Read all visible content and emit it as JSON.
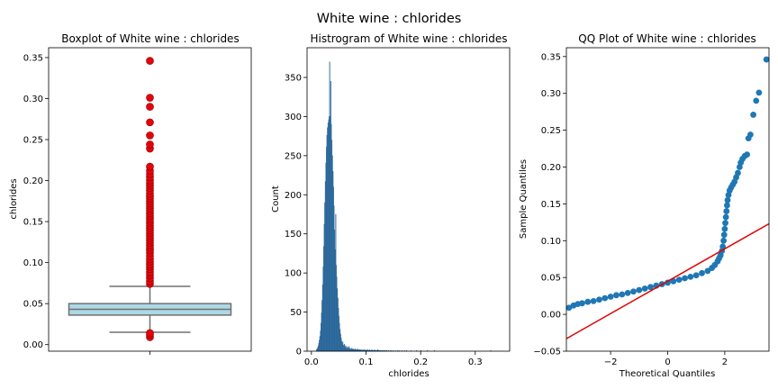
{
  "figure": {
    "title": "White wine : chlorides"
  },
  "chart_data": [
    {
      "type": "box",
      "title": "Boxplot of White wine : chlorides",
      "xlabel": "",
      "ylabel": "chlorides",
      "ylim": [
        -0.008,
        0.362
      ],
      "yticks": [
        0.0,
        0.05,
        0.1,
        0.15,
        0.2,
        0.25,
        0.3,
        0.35
      ],
      "ytick_labels": [
        "0.00",
        "0.05",
        "0.10",
        "0.15",
        "0.20",
        "0.25",
        "0.30",
        "0.35"
      ],
      "q1": 0.036,
      "median": 0.043,
      "q3": 0.05,
      "whisker_low": 0.015,
      "whisker_high": 0.071,
      "outliers": [
        0.009,
        0.012,
        0.014,
        0.074,
        0.077,
        0.081,
        0.085,
        0.088,
        0.092,
        0.095,
        0.098,
        0.101,
        0.104,
        0.108,
        0.112,
        0.115,
        0.118,
        0.121,
        0.124,
        0.127,
        0.13,
        0.133,
        0.136,
        0.139,
        0.142,
        0.145,
        0.148,
        0.151,
        0.154,
        0.157,
        0.16,
        0.163,
        0.166,
        0.169,
        0.172,
        0.175,
        0.178,
        0.181,
        0.184,
        0.188,
        0.191,
        0.194,
        0.197,
        0.2,
        0.204,
        0.208,
        0.212,
        0.217,
        0.239,
        0.244,
        0.255,
        0.271,
        0.29,
        0.301,
        0.346
      ],
      "colors": {
        "box": "#add8e6",
        "outlier": "#e8000b",
        "lines": "#707070"
      }
    },
    {
      "type": "histogram",
      "title": "Histrogram of White wine : chlorides",
      "xlabel": "chlorides",
      "ylabel": "Count",
      "xlim": [
        -0.008,
        0.363
      ],
      "ylim": [
        0,
        388
      ],
      "xticks": [
        0.0,
        0.1,
        0.2,
        0.3
      ],
      "xtick_labels": [
        "0.0",
        "0.1",
        "0.2",
        "0.3"
      ],
      "yticks": [
        0,
        50,
        100,
        150,
        200,
        250,
        300,
        350
      ],
      "ytick_labels": [
        "0",
        "50",
        "100",
        "150",
        "200",
        "250",
        "300",
        "350"
      ],
      "bin_start": 0.009,
      "bin_width": 0.001,
      "counts": [
        2,
        3,
        5,
        7,
        10,
        14,
        19,
        26,
        36,
        49,
        65,
        85,
        108,
        134,
        162,
        190,
        217,
        241,
        261,
        276,
        286,
        292,
        296,
        300,
        370,
        300,
        345,
        290,
        270,
        250,
        230,
        210,
        186,
        155,
        130,
        175,
        110,
        95,
        80,
        68,
        55,
        45,
        36,
        28,
        22,
        17,
        13,
        10,
        12,
        8,
        6,
        9,
        5,
        7,
        4,
        6,
        3,
        5,
        4,
        6,
        3,
        4,
        2,
        3,
        4,
        2,
        3,
        2,
        3,
        2,
        2,
        3,
        2,
        1,
        2,
        3,
        2,
        1,
        2,
        2,
        1,
        2,
        1,
        2,
        1,
        1,
        2,
        1,
        2,
        1,
        1,
        2,
        1,
        1,
        2,
        1,
        1,
        2,
        1,
        1,
        1,
        2,
        1,
        1,
        1,
        1,
        2,
        1,
        1,
        1,
        1,
        1,
        2,
        1,
        1,
        1,
        1,
        1,
        0,
        1,
        1,
        1,
        0,
        1,
        1,
        0,
        1,
        0,
        1,
        1,
        0,
        0,
        1,
        0,
        0,
        1,
        0,
        1,
        0,
        0,
        1,
        0,
        0,
        0,
        1,
        0,
        0,
        0,
        1,
        0,
        0,
        1,
        0,
        0,
        0,
        0,
        1,
        0,
        0,
        0,
        0,
        1,
        0,
        0,
        0,
        1,
        0,
        0,
        0,
        0,
        0,
        0,
        0,
        1,
        0,
        0,
        0,
        0,
        0,
        0,
        0,
        0,
        0,
        1,
        0,
        0,
        0,
        0,
        0,
        0,
        0,
        1,
        0,
        0,
        0,
        0,
        0,
        0,
        0,
        0,
        0,
        0,
        0,
        1,
        0,
        0,
        0,
        0,
        0,
        0,
        0,
        0,
        0,
        0,
        0,
        0,
        1,
        0,
        0,
        0,
        0,
        0,
        0,
        0,
        0,
        0,
        0,
        0,
        0,
        0,
        0,
        0,
        0,
        0,
        0,
        0,
        0,
        0,
        0,
        0,
        0,
        0,
        0,
        0,
        0,
        0,
        0,
        0,
        0,
        0,
        0,
        0,
        0,
        0,
        0,
        0,
        0,
        0,
        0,
        0,
        0,
        0,
        0,
        0,
        0,
        0,
        0,
        0,
        0,
        0,
        0,
        0,
        0,
        0,
        0,
        0,
        0,
        0,
        0,
        0,
        0,
        0,
        0,
        0,
        0,
        0,
        0,
        0,
        0,
        0,
        0,
        0,
        0,
        0,
        0,
        0,
        0,
        0,
        0,
        0,
        0,
        0,
        0,
        0,
        0,
        0,
        0,
        0,
        0,
        0,
        0,
        0,
        0,
        0,
        0,
        0,
        0,
        0,
        0,
        1
      ],
      "colors": {
        "bar": "#3a7ab0",
        "edge": "#1f5a8c"
      }
    },
    {
      "type": "scatter",
      "title": "QQ Plot of White wine : chlorides",
      "xlabel": "Theoretical Quantiles",
      "ylabel": "Sample Quantiles",
      "xlim": [
        -3.55,
        3.55
      ],
      "ylim": [
        -0.05,
        0.362
      ],
      "xticks": [
        -2,
        0,
        2
      ],
      "xtick_labels": [
        "−2",
        "0",
        "2"
      ],
      "yticks": [
        -0.05,
        0.0,
        0.05,
        0.1,
        0.15,
        0.2,
        0.25,
        0.3,
        0.35
      ],
      "ytick_labels": [
        "−0.05",
        "0.00",
        "0.05",
        "0.10",
        "0.15",
        "0.20",
        "0.25",
        "0.30",
        "0.35"
      ],
      "points": [
        [
          -3.46,
          0.009
        ],
        [
          -3.3,
          0.012
        ],
        [
          -3.15,
          0.014
        ],
        [
          -3.0,
          0.015
        ],
        [
          -2.8,
          0.017
        ],
        [
          -2.6,
          0.018
        ],
        [
          -2.4,
          0.02
        ],
        [
          -2.2,
          0.022
        ],
        [
          -2.0,
          0.024
        ],
        [
          -1.8,
          0.026
        ],
        [
          -1.6,
          0.027
        ],
        [
          -1.4,
          0.029
        ],
        [
          -1.2,
          0.031
        ],
        [
          -1.0,
          0.033
        ],
        [
          -0.8,
          0.035
        ],
        [
          -0.6,
          0.037
        ],
        [
          -0.4,
          0.039
        ],
        [
          -0.2,
          0.041
        ],
        [
          0.0,
          0.043
        ],
        [
          0.2,
          0.045
        ],
        [
          0.4,
          0.047
        ],
        [
          0.6,
          0.049
        ],
        [
          0.8,
          0.051
        ],
        [
          1.0,
          0.053
        ],
        [
          1.2,
          0.056
        ],
        [
          1.4,
          0.059
        ],
        [
          1.55,
          0.063
        ],
        [
          1.65,
          0.067
        ],
        [
          1.75,
          0.072
        ],
        [
          1.8,
          0.076
        ],
        [
          1.85,
          0.08
        ],
        [
          1.9,
          0.086
        ],
        [
          1.93,
          0.092
        ],
        [
          1.96,
          0.1
        ],
        [
          1.98,
          0.108
        ],
        [
          2.0,
          0.116
        ],
        [
          2.02,
          0.124
        ],
        [
          2.04,
          0.132
        ],
        [
          2.06,
          0.14
        ],
        [
          2.08,
          0.148
        ],
        [
          2.1,
          0.155
        ],
        [
          2.13,
          0.162
        ],
        [
          2.17,
          0.168
        ],
        [
          2.22,
          0.172
        ],
        [
          2.28,
          0.176
        ],
        [
          2.34,
          0.18
        ],
        [
          2.4,
          0.186
        ],
        [
          2.46,
          0.192
        ],
        [
          2.52,
          0.2
        ],
        [
          2.56,
          0.206
        ],
        [
          2.62,
          0.211
        ],
        [
          2.7,
          0.215
        ],
        [
          2.78,
          0.217
        ],
        [
          2.83,
          0.239
        ],
        [
          2.9,
          0.244
        ],
        [
          3.0,
          0.271
        ],
        [
          3.1,
          0.29
        ],
        [
          3.2,
          0.301
        ],
        [
          3.46,
          0.346
        ]
      ],
      "reference_line": [
        [
          -3.55,
          -0.033
        ],
        [
          3.55,
          0.123
        ]
      ],
      "colors": {
        "points": "#1f77b4",
        "line": "#e00000"
      }
    }
  ]
}
